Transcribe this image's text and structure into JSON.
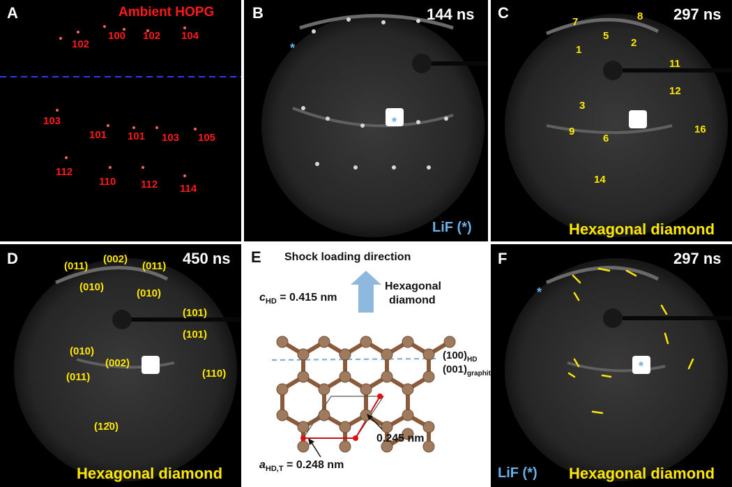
{
  "panels": {
    "a": {
      "letter": "A",
      "title": "Ambient HOPG",
      "labels": [
        "102",
        "100",
        "102",
        "104",
        "103",
        "101",
        "101",
        "103",
        "105",
        "112",
        "110",
        "112",
        "114"
      ]
    },
    "b": {
      "letter": "B",
      "time": "144 ns",
      "caption": "LiF (*)",
      "asterisk": "*"
    },
    "c": {
      "letter": "C",
      "time": "297 ns",
      "caption": "Hexagonal diamond",
      "labels": [
        "7",
        "8",
        "5",
        "1",
        "2",
        "11",
        "12",
        "3",
        "9",
        "6",
        "16",
        "14"
      ]
    },
    "d": {
      "letter": "D",
      "time": "450 ns",
      "caption": "Hexagonal diamond",
      "labels": [
        "(011)",
        "(002)",
        "(011)",
        "(010)",
        "(010)",
        "(101)",
        "(101)",
        "(010)",
        "(002)",
        "(011)",
        "(110)",
        "(12̄0)"
      ]
    },
    "e": {
      "letter": "E",
      "title": "Shock loading direction",
      "hd_label_1": "Hexagonal",
      "hd_label_2": "diamond",
      "c_sym": "c",
      "c_sub": "HD",
      "c_value": " = 0.415 nm",
      "plane_1": "(100)",
      "plane_1_sub": "HD",
      "plane_2": "(001)",
      "plane_2_sub": "graphite",
      "a_sym": "a",
      "a_sub": "HD,T",
      "a_value": " = 0.248 nm",
      "d_value": "0.245 nm"
    },
    "f": {
      "letter": "F",
      "time": "297 ns",
      "caption_lif": "LiF (*)",
      "caption_hd": "Hexagonal diamond",
      "asterisk": "*"
    }
  },
  "colors": {
    "label_red": "#ff1a1a",
    "label_yellow": "#ffe800",
    "label_blue": "#6ab0e6",
    "atom": "#a07a5c",
    "bond": "#8a5a3a",
    "arrow": "#8fb8df"
  }
}
